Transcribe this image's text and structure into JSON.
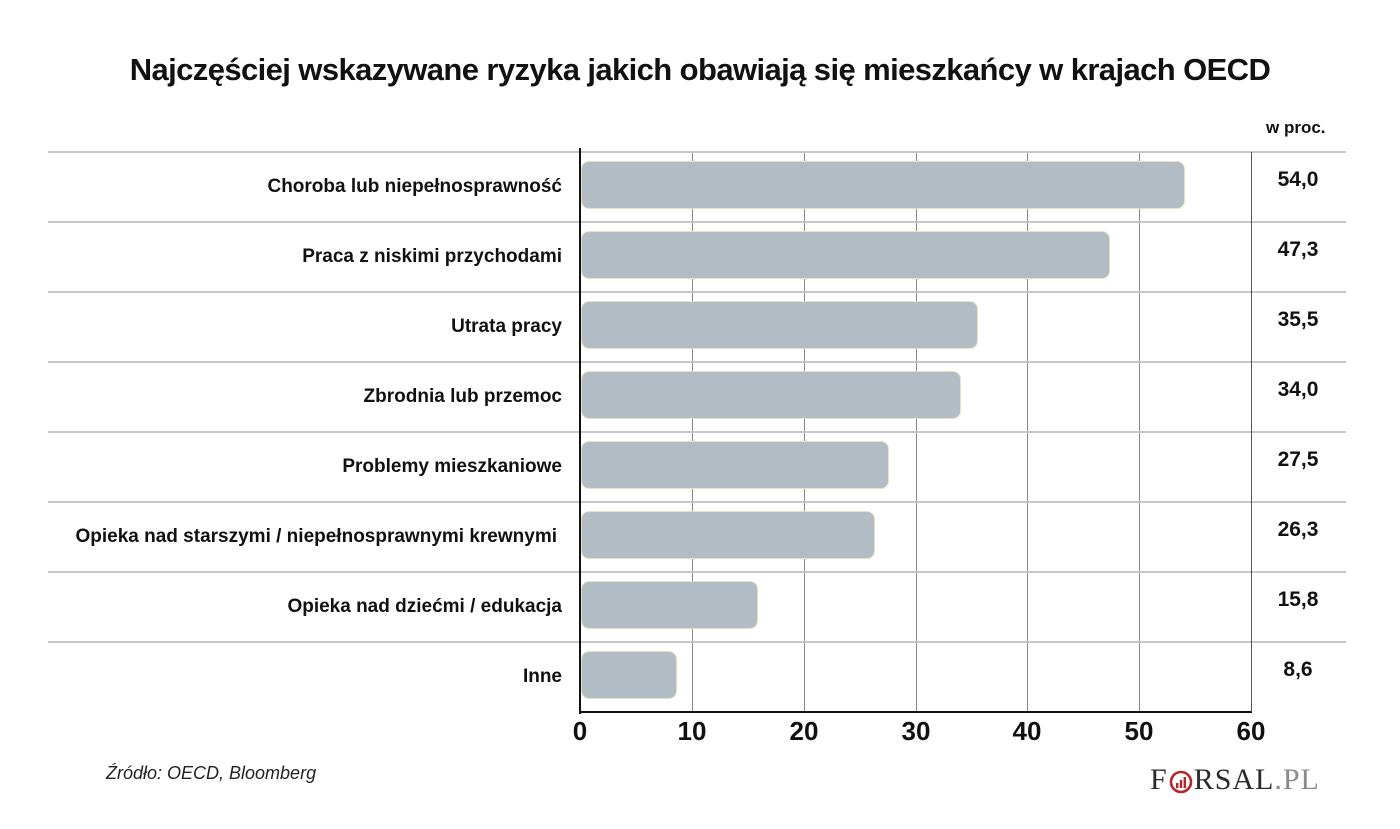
{
  "header": {
    "title": "Najczęściej wskazywane ryzyka jakich obawiają się mieszkańcy w krajach OECD",
    "unit": "w proc."
  },
  "footer": {
    "source": "Źródło: OECD, Bloomberg",
    "logo": {
      "first": "F",
      "middle": "RSAL",
      "suffix": ".PL",
      "accent_color": "#b3262b"
    }
  },
  "colors": {
    "bar_fill": "#b1bcc5",
    "bar_border": "#e4e3c4",
    "grid": "#8a8a8a",
    "row_separator": "#c6c6c6"
  },
  "chart_data": {
    "type": "bar",
    "orientation": "horizontal",
    "title": "Najczęściej wskazywane ryzyka jakich obawiają się mieszkańcy w krajach OECD",
    "xlabel": "",
    "ylabel": "",
    "unit_label": "w proc.",
    "categories": [
      "Choroba lub niepełnosprawność",
      "Praca z niskimi przychodami",
      "Utrata pracy",
      "Zbrodnia lub przemoc",
      "Problemy mieszkaniowe",
      "Opieka nad starszymi / niepełnosprawnymi krewnymi",
      "Opieka nad dziećmi / edukacja",
      "Inne"
    ],
    "values": [
      54.0,
      47.3,
      35.5,
      34.0,
      27.5,
      26.3,
      15.8,
      8.6
    ],
    "value_labels": [
      "54,0",
      "47,3",
      "35,5",
      "34,0",
      "27,5",
      "26,3",
      "15,8",
      "8,6"
    ],
    "xlim": [
      0,
      60
    ],
    "xticks": [
      "0",
      "10",
      "20",
      "30",
      "40",
      "50",
      "60"
    ],
    "grid": true,
    "legend": null,
    "source": "Źródło: OECD, Bloomberg"
  }
}
